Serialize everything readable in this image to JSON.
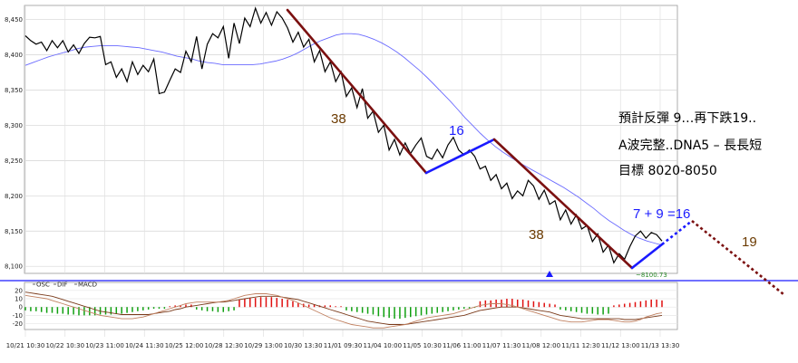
{
  "chart_data": [
    {
      "type": "line",
      "title": "",
      "grid": true,
      "ylim": [
        8090,
        8470
      ],
      "y_ticks": [
        "8,450",
        "8,400",
        "8,350",
        "8,300",
        "8,250",
        "8,200",
        "8,150",
        "8,100"
      ],
      "x_ticks": [
        "10/21 10:30",
        "10/22 10:30",
        "10/23 11:00",
        "10/24 11:30",
        "10/25 12:00",
        "10/28 12:30",
        "10/29 13:00",
        "10/30 13:30",
        "11/01 09:30",
        "11/04 10:00",
        "11/05 10:30",
        "11/06 11:00",
        "11/07 11:30",
        "11/08 12:00",
        "11/11 12:30",
        "11/12 13:00",
        "11/13 13:30"
      ],
      "series": [
        {
          "color": "#000000",
          "values": [
            8427,
            8420,
            8415,
            8418,
            8406,
            8420,
            8410,
            8420,
            8404,
            8414,
            8402,
            8416,
            8425,
            8424,
            8426,
            8386,
            8390,
            8368,
            8380,
            8362,
            8390,
            8372,
            8385,
            8376,
            8394,
            8345,
            8347,
            8364,
            8380,
            8375,
            8405,
            8390,
            8426,
            8380,
            8415,
            8430,
            8424,
            8440,
            8395,
            8445,
            8416,
            8452,
            8440,
            8466,
            8445,
            8460,
            8442,
            8461,
            8452,
            8438,
            8418,
            8432,
            8411,
            8422,
            8390,
            8406,
            8376,
            8390,
            8362,
            8376,
            8341,
            8353,
            8325,
            8352,
            8310,
            8320,
            8290,
            8300,
            8265,
            8280,
            8258,
            8275,
            8260,
            8272,
            8282,
            8256,
            8252,
            8266,
            8254,
            8272,
            8283,
            8265,
            8258,
            8265,
            8256,
            8238,
            8242,
            8222,
            8230,
            8210,
            8218,
            8196,
            8207,
            8200,
            8222,
            8214,
            8195,
            8208,
            8188,
            8193,
            8166,
            8180,
            8160,
            8173,
            8153,
            8158,
            8135,
            8146,
            8120,
            8130,
            8105,
            8118,
            8110,
            8128,
            8143,
            8150,
            8140,
            8148,
            8145,
            8136
          ],
          "x_range": [
            0,
            119
          ]
        },
        {
          "color": "#6a6aff",
          "values": [
            8385,
            8389,
            8393,
            8397,
            8400,
            8403,
            8406,
            8409,
            8411,
            8412,
            8413,
            8413,
            8413,
            8412,
            8411,
            8410,
            8408,
            8406,
            8404,
            8401,
            8398,
            8396,
            8394,
            8391,
            8389,
            8388,
            8386,
            8386,
            8386,
            8386,
            8386,
            8387,
            8389,
            8391,
            8394,
            8398,
            8403,
            8409,
            8415,
            8420,
            8424,
            8428,
            8430,
            8430,
            8429,
            8426,
            8422,
            8417,
            8411,
            8404,
            8396,
            8387,
            8378,
            8368,
            8357,
            8346,
            8335,
            8323,
            8311,
            8300,
            8289,
            8279,
            8270,
            8262,
            8255,
            8248,
            8242,
            8236,
            8230,
            8224,
            8218,
            8212,
            8205,
            8198,
            8190,
            8182,
            8173,
            8165,
            8158,
            8151,
            8145,
            8140,
            8136,
            8133,
            8130
          ],
          "x_range": [
            0,
            119
          ]
        }
      ],
      "last_value_label": "~8100.73",
      "annotations": [
        "38",
        "16",
        "38",
        "7 + 9 =16",
        "19"
      ],
      "note_lines": [
        "預計反彈 9…再下跌19..",
        "A波完整..DNA5 – 長長短",
        "目標 8020-8050"
      ]
    },
    {
      "type": "bar",
      "legend": [
        "OSC",
        "DIF",
        "MACD"
      ],
      "y_ticks": [
        "20",
        "10",
        "0",
        "-10",
        "-20"
      ],
      "ylim": [
        -27,
        22
      ],
      "osc": [
        -4,
        -5,
        -5,
        -6,
        -7,
        -7,
        -8,
        -8,
        -9,
        -9,
        -10,
        -10,
        -10,
        -10,
        -9,
        -9,
        -9,
        -8,
        -8,
        -7,
        -6,
        -5,
        -4,
        -3,
        -2,
        -2,
        -2,
        1,
        2,
        2,
        3,
        3,
        -3,
        -4,
        -5,
        -5,
        -6,
        -6,
        -5,
        -4,
        9,
        10,
        11,
        11,
        12,
        12,
        12,
        11,
        10,
        9,
        7,
        5,
        4,
        3,
        3,
        2,
        2,
        2,
        1,
        1,
        -4,
        -5,
        -6,
        -7,
        -8,
        -9,
        -11,
        -12,
        -13,
        -14,
        -14,
        -13,
        -12,
        -11,
        -10,
        -9,
        -8,
        -7,
        -6,
        -5,
        -4,
        -3,
        -2,
        -2,
        -1,
        7,
        8,
        8,
        9,
        9,
        10,
        10,
        9,
        9,
        8,
        7,
        6,
        5,
        4,
        3,
        -3,
        -4,
        -5,
        -6,
        -7,
        -8,
        -8,
        -9,
        -9,
        -8,
        2,
        3,
        4,
        5,
        6,
        7,
        8,
        9,
        9,
        8
      ],
      "dif": [
        14,
        13,
        12,
        11,
        10,
        8,
        6,
        4,
        2,
        0,
        -2,
        -4,
        -6,
        -8,
        -10,
        -11,
        -12,
        -13,
        -14,
        -14,
        -14,
        -13,
        -12,
        -10,
        -8,
        -6,
        -4,
        -2,
        0,
        2,
        4,
        5,
        6,
        6,
        6,
        6,
        6,
        7,
        8,
        10,
        12,
        14,
        15,
        16,
        16,
        16,
        15,
        14,
        12,
        10,
        8,
        5,
        2,
        -1,
        -4,
        -7,
        -10,
        -13,
        -15,
        -17,
        -19,
        -21,
        -22,
        -23,
        -24,
        -25,
        -25,
        -25,
        -24,
        -23,
        -22,
        -21,
        -19,
        -17,
        -15,
        -13,
        -12,
        -11,
        -10,
        -9,
        -8,
        -6,
        -4,
        -2,
        0,
        2,
        3,
        4,
        4,
        4,
        3,
        2,
        0,
        -2,
        -4,
        -6,
        -8,
        -10,
        -12,
        -14,
        -16,
        -17,
        -18,
        -18,
        -18,
        -17,
        -16,
        -15,
        -15,
        -15,
        -16,
        -17,
        -18,
        -18,
        -17,
        -15,
        -12,
        -10,
        -8,
        -7
      ],
      "macd": [
        18,
        17,
        16,
        15,
        14,
        13,
        11,
        9,
        7,
        5,
        3,
        1,
        -1,
        -3,
        -5,
        -6,
        -7,
        -8,
        -9,
        -9,
        -9,
        -9,
        -9,
        -9,
        -8,
        -7,
        -6,
        -5,
        -3,
        -2,
        0,
        1,
        2,
        3,
        4,
        5,
        6,
        6,
        7,
        8,
        9,
        10,
        11,
        12,
        13,
        13,
        13,
        13,
        12,
        11,
        10,
        9,
        7,
        5,
        3,
        1,
        -1,
        -3,
        -5,
        -7,
        -9,
        -11,
        -13,
        -15,
        -17,
        -18,
        -19,
        -20,
        -21,
        -21,
        -21,
        -21,
        -20,
        -19,
        -18,
        -17,
        -16,
        -15,
        -14,
        -13,
        -12,
        -11,
        -10,
        -8,
        -6,
        -4,
        -3,
        -2,
        -1,
        0,
        0,
        0,
        0,
        -1,
        -2,
        -3,
        -4,
        -5,
        -6,
        -8,
        -10,
        -11,
        -12,
        -13,
        -14,
        -14,
        -14,
        -14,
        -14,
        -14,
        -14,
        -14,
        -15,
        -15,
        -15,
        -14,
        -13,
        -12,
        -11,
        -10
      ]
    }
  ]
}
